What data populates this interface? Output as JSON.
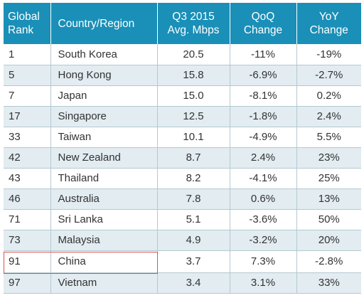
{
  "header": {
    "rank": [
      "Global",
      "Rank"
    ],
    "country": "Country/Region",
    "speed": [
      "Q3 2015",
      "Avg. Mbps"
    ],
    "qoq": [
      "QoQ",
      "Change"
    ],
    "yoy": [
      "YoY",
      "Change"
    ]
  },
  "rows": [
    {
      "rank": "1",
      "country": "South Korea",
      "speed": "20.5",
      "qoq": "-11%",
      "yoy": "-19%"
    },
    {
      "rank": "5",
      "country": "Hong Kong",
      "speed": "15.8",
      "qoq": "-6.9%",
      "yoy": "-2.7%"
    },
    {
      "rank": "7",
      "country": "Japan",
      "speed": "15.0",
      "qoq": "-8.1%",
      "yoy": "0.2%"
    },
    {
      "rank": "17",
      "country": "Singapore",
      "speed": "12.5",
      "qoq": "-1.8%",
      "yoy": "2.4%"
    },
    {
      "rank": "33",
      "country": "Taiwan",
      "speed": "10.1",
      "qoq": "-4.9%",
      "yoy": "5.5%"
    },
    {
      "rank": "42",
      "country": "New Zealand",
      "speed": "8.7",
      "qoq": "2.4%",
      "yoy": "23%"
    },
    {
      "rank": "43",
      "country": "Thailand",
      "speed": "8.2",
      "qoq": "-4.1%",
      "yoy": "25%"
    },
    {
      "rank": "46",
      "country": "Australia",
      "speed": "7.8",
      "qoq": "0.6%",
      "yoy": "13%"
    },
    {
      "rank": "71",
      "country": "Sri Lanka",
      "speed": "5.1",
      "qoq": "-3.6%",
      "yoy": "50%"
    },
    {
      "rank": "73",
      "country": "Malaysia",
      "speed": "4.9",
      "qoq": "-3.2%",
      "yoy": "20%"
    },
    {
      "rank": "91",
      "country": "China",
      "speed": "3.7",
      "qoq": "7.3%",
      "yoy": "-2.8%"
    },
    {
      "rank": "97",
      "country": "Vietnam",
      "speed": "3.4",
      "qoq": "3.1%",
      "yoy": "33%"
    }
  ],
  "colors": {
    "header_bg": "#1a8fb8",
    "row_alt_bg": "#e2ecf1",
    "highlight_border": "#d9534f"
  }
}
